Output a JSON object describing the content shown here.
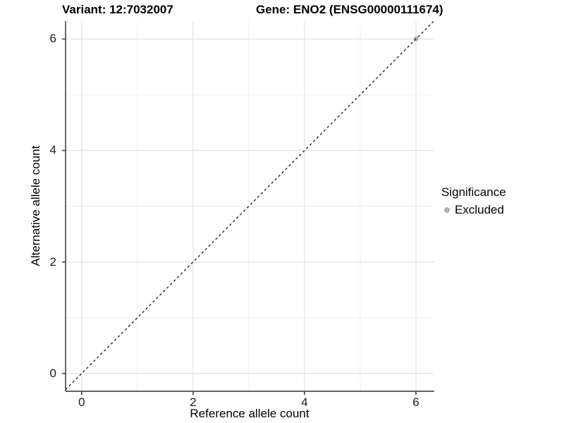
{
  "header": {
    "variant_title": "Variant: 12:7032007",
    "gene_title": "Gene: ENO2 (ENSG00000111674)"
  },
  "axes": {
    "x_label": "Reference allele count",
    "y_label": "Alternative allele count"
  },
  "legend": {
    "title": "Significance",
    "items": [
      {
        "label": "Excluded",
        "color": "#b0b0b0",
        "marker": "circle-icon"
      }
    ]
  },
  "chart_data": {
    "type": "scatter",
    "title": "Variant: 12:7032007",
    "subtitle": "Gene: ENO2 (ENSG00000111674)",
    "xlabel": "Reference allele count",
    "ylabel": "Alternative allele count",
    "x_ticks": [
      0,
      2,
      4,
      6
    ],
    "y_ticks": [
      0,
      2,
      4,
      6
    ],
    "x_minor_ticks": [
      1,
      3,
      5
    ],
    "y_minor_ticks": [
      1,
      3,
      5
    ],
    "xlim": [
      -0.29,
      6.33
    ],
    "ylim": [
      -0.32,
      6.32
    ],
    "grid": true,
    "legend_position": "right",
    "legend_title": "Significance",
    "series": [
      {
        "name": "Excluded",
        "color": "#b0b0b0",
        "points": [
          {
            "x": 6,
            "y": 6
          }
        ]
      }
    ],
    "reference_line": {
      "type": "identity",
      "slope": 1,
      "intercept": 0,
      "style": "dashed",
      "color": "#1a1a1a"
    },
    "colors": {
      "background": "#ffffff",
      "grid_major": "#e4e4e4",
      "grid_minor": "#f0f0f0",
      "axis_line": "#4d4d4d",
      "tick_text": "#1a1a1a"
    }
  }
}
